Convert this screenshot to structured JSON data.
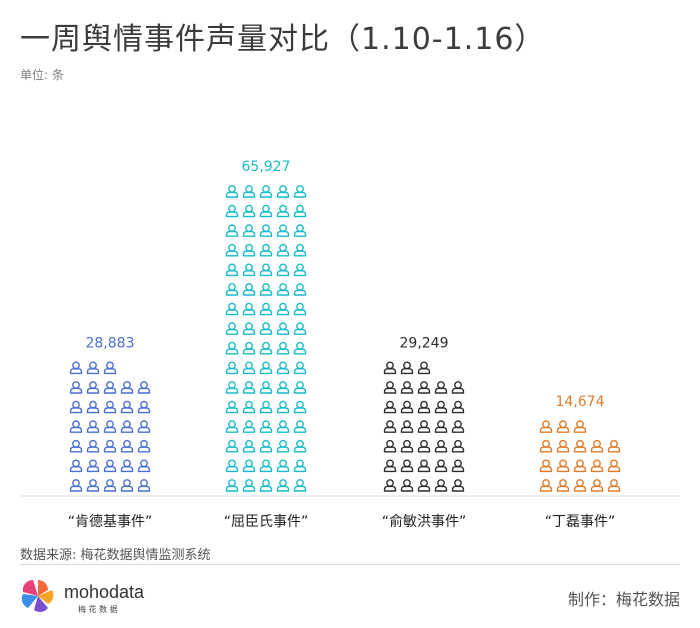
{
  "header": {
    "title": "一周舆情事件声量对比（1.10-1.16）",
    "unit": "单位: 条"
  },
  "chart_data": {
    "type": "bar",
    "title": "一周舆情事件声量对比（1.10-1.16）",
    "ylabel": "单位: 条",
    "categories": [
      "“肯德基事件”",
      "“屈臣氏事件”",
      "“俞敏洪事件”",
      "“丁磊事件”"
    ],
    "values": [
      28883,
      65927,
      29249,
      14674
    ],
    "value_labels": [
      "28,883",
      "65,927",
      "29,249",
      "14,674"
    ],
    "icon_counts": [
      33,
      80,
      33,
      18
    ],
    "colors": [
      "#4a6fcf",
      "#17bcc8",
      "#2d2d2d",
      "#e07b2a"
    ],
    "grid": false,
    "legend": "none"
  },
  "footer": {
    "source": "数据来源: 梅花数据舆情监测系统",
    "logo_text": "mohodata",
    "logo_sub": "梅 花 数 据",
    "credit": "制作：梅花数据"
  }
}
